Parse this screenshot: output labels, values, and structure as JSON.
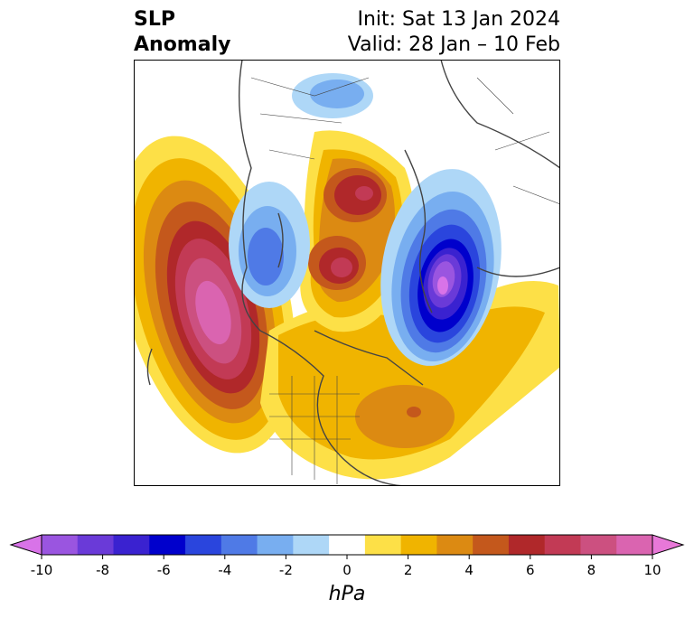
{
  "header": {
    "title_line1": "SLP",
    "title_line2": "Anomaly",
    "init": "Init: Sat 13 Jan 2024",
    "valid": "Valid: 28 Jan – 10 Feb"
  },
  "colorbar": {
    "unit_label": "hPa",
    "ticks": [
      "-10",
      "-8",
      "-6",
      "-4",
      "-2",
      "0",
      "2",
      "4",
      "6",
      "8",
      "10"
    ],
    "colors": [
      "#d873e8",
      "#9a55e0",
      "#6a3ad8",
      "#3a22d0",
      "#0000cc",
      "#2a45dd",
      "#4f7ae6",
      "#78aef0",
      "#aed7f7",
      "#ffffff",
      "#fde047",
      "#f0b400",
      "#dc8a12",
      "#c4581c",
      "#b0282a",
      "#c23a55",
      "#cc5080",
      "#da64b0",
      "#e878d8"
    ]
  },
  "map": {
    "features": [
      {
        "name": "slp-anomaly-pacific-high",
        "sign": "positive",
        "peak": "8"
      },
      {
        "name": "slp-anomaly-arctic-high",
        "sign": "positive",
        "peak": "6"
      },
      {
        "name": "slp-anomaly-siberia-high",
        "sign": "positive",
        "peak": "6"
      },
      {
        "name": "slp-anomaly-atlantic-high",
        "sign": "positive",
        "peak": "6"
      },
      {
        "name": "slp-anomaly-europe-low",
        "sign": "negative",
        "peak": "-10"
      },
      {
        "name": "slp-anomaly-asia-low",
        "sign": "negative",
        "peak": "-4"
      },
      {
        "name": "slp-anomaly-china-low",
        "sign": "negative",
        "peak": "-3"
      }
    ]
  }
}
